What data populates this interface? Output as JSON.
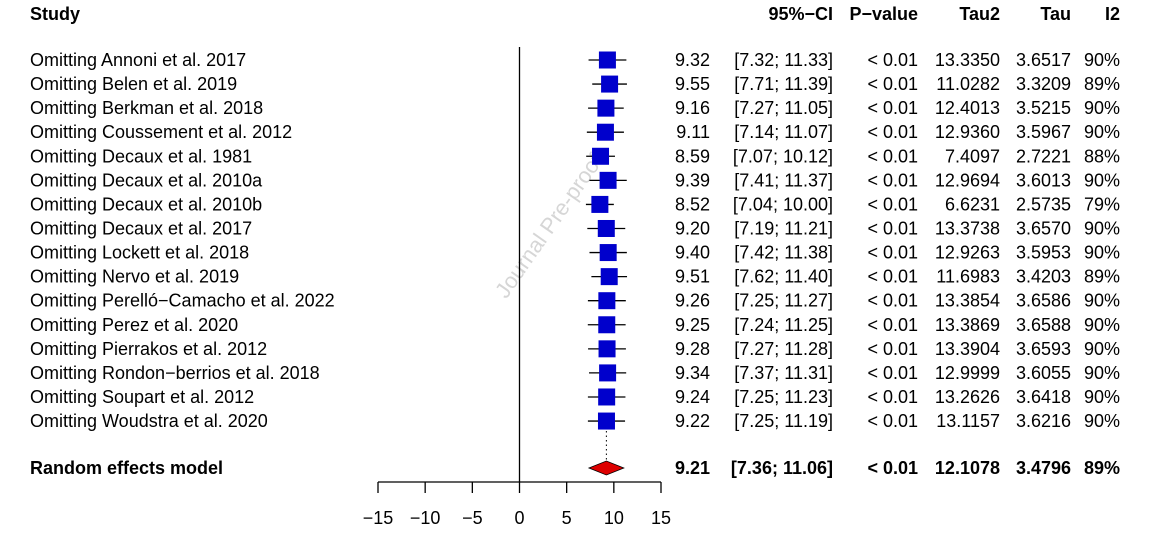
{
  "chart_data": {
    "type": "forest",
    "headers": {
      "study": "Study",
      "ci": "95%−CI",
      "pvalue": "P−value",
      "tau2": "Tau2",
      "tau": "Tau",
      "i2": "I2"
    },
    "studies": [
      {
        "label": "Omitting Annoni et al. 2017",
        "estimate": 9.32,
        "lower": 7.32,
        "upper": 11.33,
        "est_text": "9.32",
        "ci_text": "[7.32; 11.33]",
        "p_text": "< 0.01",
        "tau2_text": "13.3350",
        "tau_text": "3.6517",
        "i2_text": "90%"
      },
      {
        "label": "Omitting Belen et al. 2019",
        "estimate": 9.55,
        "lower": 7.71,
        "upper": 11.39,
        "est_text": "9.55",
        "ci_text": "[7.71; 11.39]",
        "p_text": "< 0.01",
        "tau2_text": "11.0282",
        "tau_text": "3.3209",
        "i2_text": "89%"
      },
      {
        "label": "Omitting Berkman et al. 2018",
        "estimate": 9.16,
        "lower": 7.27,
        "upper": 11.05,
        "est_text": "9.16",
        "ci_text": "[7.27; 11.05]",
        "p_text": "< 0.01",
        "tau2_text": "12.4013",
        "tau_text": "3.5215",
        "i2_text": "90%"
      },
      {
        "label": "Omitting Coussement et al. 2012",
        "estimate": 9.11,
        "lower": 7.14,
        "upper": 11.07,
        "est_text": "9.11",
        "ci_text": "[7.14; 11.07]",
        "p_text": "< 0.01",
        "tau2_text": "12.9360",
        "tau_text": "3.5967",
        "i2_text": "90%"
      },
      {
        "label": "Omitting Decaux et al. 1981",
        "estimate": 8.59,
        "lower": 7.07,
        "upper": 10.12,
        "est_text": "8.59",
        "ci_text": "[7.07; 10.12]",
        "p_text": "< 0.01",
        "tau2_text": "7.4097",
        "tau_text": "2.7221",
        "i2_text": "88%"
      },
      {
        "label": "Omitting Decaux et al. 2010a",
        "estimate": 9.39,
        "lower": 7.41,
        "upper": 11.37,
        "est_text": "9.39",
        "ci_text": "[7.41; 11.37]",
        "p_text": "< 0.01",
        "tau2_text": "12.9694",
        "tau_text": "3.6013",
        "i2_text": "90%"
      },
      {
        "label": "Omitting Decaux et al. 2010b",
        "estimate": 8.52,
        "lower": 7.04,
        "upper": 10.0,
        "est_text": "8.52",
        "ci_text": "[7.04; 10.00]",
        "p_text": "< 0.01",
        "tau2_text": "6.6231",
        "tau_text": "2.5735",
        "i2_text": "79%"
      },
      {
        "label": "Omitting Decaux et al. 2017",
        "estimate": 9.2,
        "lower": 7.19,
        "upper": 11.21,
        "est_text": "9.20",
        "ci_text": "[7.19; 11.21]",
        "p_text": "< 0.01",
        "tau2_text": "13.3738",
        "tau_text": "3.6570",
        "i2_text": "90%"
      },
      {
        "label": "Omitting Lockett et al. 2018",
        "estimate": 9.4,
        "lower": 7.42,
        "upper": 11.38,
        "est_text": "9.40",
        "ci_text": "[7.42; 11.38]",
        "p_text": "< 0.01",
        "tau2_text": "12.9263",
        "tau_text": "3.5953",
        "i2_text": "90%"
      },
      {
        "label": "Omitting Nervo et al. 2019",
        "estimate": 9.51,
        "lower": 7.62,
        "upper": 11.4,
        "est_text": "9.51",
        "ci_text": "[7.62; 11.40]",
        "p_text": "< 0.01",
        "tau2_text": "11.6983",
        "tau_text": "3.4203",
        "i2_text": "89%"
      },
      {
        "label": "Omitting Perelló−Camacho et al. 2022",
        "estimate": 9.26,
        "lower": 7.25,
        "upper": 11.27,
        "est_text": "9.26",
        "ci_text": "[7.25; 11.27]",
        "p_text": "< 0.01",
        "tau2_text": "13.3854",
        "tau_text": "3.6586",
        "i2_text": "90%"
      },
      {
        "label": "Omitting Perez et al. 2020",
        "estimate": 9.25,
        "lower": 7.24,
        "upper": 11.25,
        "est_text": "9.25",
        "ci_text": "[7.24; 11.25]",
        "p_text": "< 0.01",
        "tau2_text": "13.3869",
        "tau_text": "3.6588",
        "i2_text": "90%"
      },
      {
        "label": "Omitting Pierrakos et al. 2012",
        "estimate": 9.28,
        "lower": 7.27,
        "upper": 11.28,
        "est_text": "9.28",
        "ci_text": "[7.27; 11.28]",
        "p_text": "< 0.01",
        "tau2_text": "13.3904",
        "tau_text": "3.6593",
        "i2_text": "90%"
      },
      {
        "label": "Omitting Rondon−berrios et al. 2018",
        "estimate": 9.34,
        "lower": 7.37,
        "upper": 11.31,
        "est_text": "9.34",
        "ci_text": "[7.37; 11.31]",
        "p_text": "< 0.01",
        "tau2_text": "12.9999",
        "tau_text": "3.6055",
        "i2_text": "90%"
      },
      {
        "label": "Omitting Soupart et al. 2012",
        "estimate": 9.24,
        "lower": 7.25,
        "upper": 11.23,
        "est_text": "9.24",
        "ci_text": "[7.25; 11.23]",
        "p_text": "< 0.01",
        "tau2_text": "13.2626",
        "tau_text": "3.6418",
        "i2_text": "90%"
      },
      {
        "label": "Omitting Woudstra et al. 2020",
        "estimate": 9.22,
        "lower": 7.25,
        "upper": 11.19,
        "est_text": "9.22",
        "ci_text": "[7.25; 11.19]",
        "p_text": "< 0.01",
        "tau2_text": "13.1157",
        "tau_text": "3.6216",
        "i2_text": "90%"
      }
    ],
    "pooled": {
      "label": "Random effects model",
      "estimate": 9.21,
      "lower": 7.36,
      "upper": 11.06,
      "est_text": "9.21",
      "ci_text": "[7.36; 11.06]",
      "p_text": "< 0.01",
      "tau2_text": "12.1078",
      "tau_text": "3.4796",
      "i2_text": "89%"
    },
    "x_ticks": [
      -15,
      -10,
      -5,
      0,
      5,
      10,
      15
    ],
    "x_tick_labels": [
      "−15",
      "−10",
      "−5",
      "0",
      "5",
      "10",
      "15"
    ],
    "xlim": [
      -15,
      15
    ],
    "null_line": 0,
    "watermark": "Journal Pre-proof",
    "colors": {
      "square": "#0000cc",
      "diamond": "#dd0000",
      "line": "#000000"
    }
  }
}
